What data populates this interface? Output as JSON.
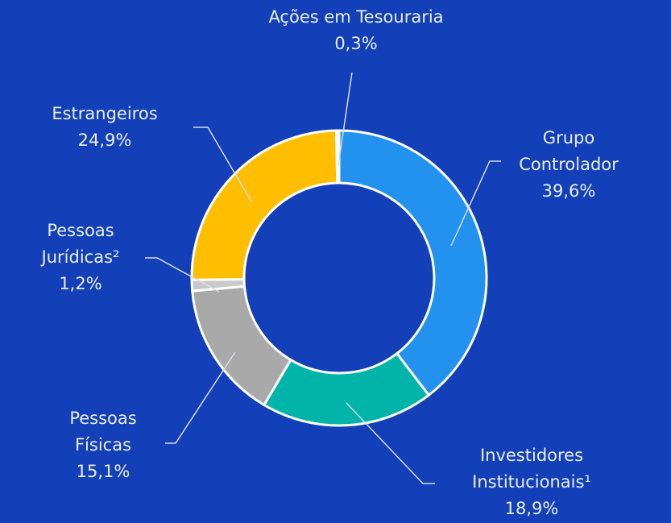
{
  "chart_data": {
    "type": "donut",
    "categories": [
      "Grupo Controlador",
      "Investidores Institucionais¹",
      "Pessoas Físicas",
      "Pessoas Jurídicas²",
      "Estrangeiros",
      "Ações em Tesouraria"
    ],
    "values": [
      39.6,
      18.9,
      15.1,
      1.2,
      24.9,
      0.3
    ],
    "value_labels": [
      "39,6%",
      "18,9%",
      "15,1%",
      "1,2%",
      "24,9%",
      "0,3%"
    ],
    "colors": [
      "#2391ee",
      "#00b4a9",
      "#a9a9a9",
      "#c9c9c9",
      "#ffbf00",
      "#e6e6e6"
    ]
  }
}
